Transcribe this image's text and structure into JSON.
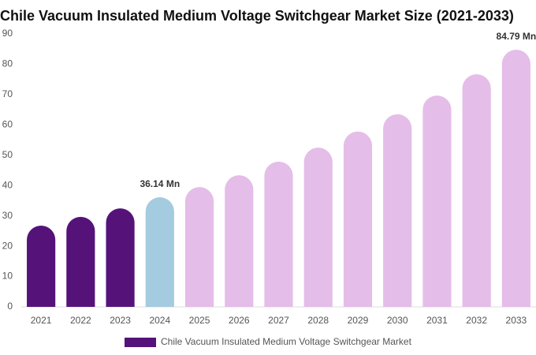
{
  "chart_data": {
    "type": "bar",
    "title": "Chile Vacuum Insulated Medium Voltage Switchgear Market Size (2021-2033)",
    "categories": [
      "2021",
      "2022",
      "2023",
      "2024",
      "2025",
      "2026",
      "2027",
      "2028",
      "2029",
      "2030",
      "2031",
      "2032",
      "2033"
    ],
    "series": [
      {
        "name": "Chile Vacuum Insulated Medium Voltage Switchgear Market",
        "color": "#55137a",
        "values": [
          26.8,
          29.7,
          32.5,
          36.14,
          39.5,
          43.4,
          47.9,
          52.5,
          57.8,
          63.5,
          69.7,
          76.7,
          84.79
        ],
        "colors": [
          "#55137a",
          "#55137a",
          "#55137a",
          "#a4cbe0",
          "#e5bde9",
          "#e5bde9",
          "#e5bde9",
          "#e5bde9",
          "#e5bde9",
          "#e5bde9",
          "#e5bde9",
          "#e5bde9",
          "#e5bde9"
        ],
        "value_labels": [
          null,
          null,
          null,
          "36.14 Mn",
          null,
          null,
          null,
          null,
          null,
          null,
          null,
          null,
          "84.79 Mn"
        ]
      }
    ],
    "ylim": [
      0,
      90
    ],
    "yticks": [
      0,
      10,
      20,
      30,
      40,
      50,
      60,
      70,
      80,
      90
    ],
    "grid": false
  }
}
